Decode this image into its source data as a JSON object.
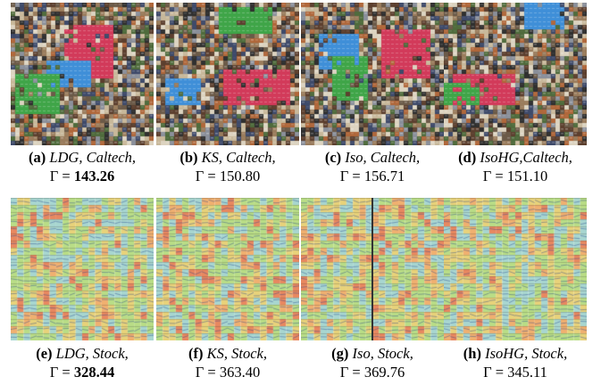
{
  "figure": {
    "rows": [
      {
        "dataset": "Caltech",
        "panels": [
          {
            "label": "(a)",
            "method_text": "LDG, Caltech,",
            "gamma": "Γ = ",
            "value": "143.26",
            "best": true
          },
          {
            "label": "(b)",
            "method_text": "KS, Caltech,",
            "gamma": "Γ = ",
            "value": "150.80",
            "best": false
          },
          {
            "label": "(c)",
            "method_text": "Iso, Caltech,",
            "gamma": "Γ = ",
            "value": "156.71",
            "best": false
          },
          {
            "label": "(d)",
            "method_text": "IsoHG,Caltech,",
            "gamma": "Γ = ",
            "value": "151.10",
            "best": false
          }
        ]
      },
      {
        "dataset": "Stock",
        "panels": [
          {
            "label": "(e)",
            "method_text": "LDG, Stock,",
            "gamma": "Γ = ",
            "value": "328.44",
            "best": true
          },
          {
            "label": "(f)",
            "method_text": "KS, Stock,",
            "gamma": "Γ = ",
            "value": "363.40",
            "best": false
          },
          {
            "label": "(g)",
            "method_text": "Iso, Stock,",
            "gamma": "Γ = ",
            "value": "369.76",
            "best": false
          },
          {
            "label": "(h)",
            "method_text": "IsoHG, Stock,",
            "gamma": "Γ = ",
            "value": "345.11",
            "best": false
          }
        ]
      }
    ]
  }
}
